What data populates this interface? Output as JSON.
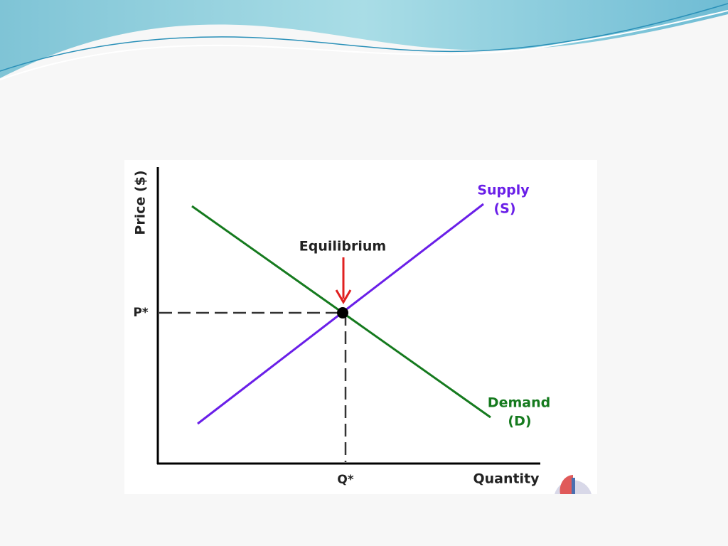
{
  "diagram": {
    "y_axis_label": "Price ($)",
    "x_axis_label": "Quantity",
    "price_marker": "P*",
    "quantity_marker": "Q*",
    "equilibrium_label": "Equilibrium",
    "supply": {
      "label": "Supply",
      "symbol": "(S)"
    },
    "demand": {
      "label": "Demand",
      "symbol": "(D)"
    }
  }
}
